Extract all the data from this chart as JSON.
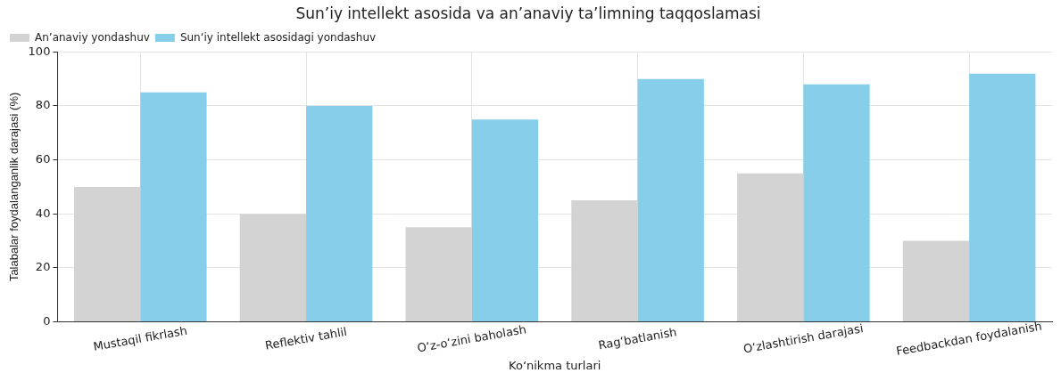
{
  "chart_data": {
    "type": "bar",
    "title": "Sun’iy intellekt asosida va an’anaviy ta’limning taqqoslamasi",
    "xlabel": "Ko‘nikma turlari",
    "ylabel": "Talabalar foydalanganlik darajasi (%)",
    "categories": [
      "Mustaqil fikrlash",
      "Reflektiv tahlil",
      "O‘z-o‘zini baholash",
      "Rag‘batlanish",
      "O‘zlashtirish darajasi",
      "Feedbackdan foydalanish"
    ],
    "series": [
      {
        "name": "An’anaviy yondashuv",
        "color": "#d3d3d3",
        "values": [
          50,
          40,
          35,
          45,
          55,
          30
        ]
      },
      {
        "name": "Sun‘iy intellekt asosidagi yondashuv",
        "color": "#87ceeb",
        "values": [
          85,
          80,
          75,
          90,
          88,
          92
        ]
      }
    ],
    "ylim": [
      0,
      100
    ],
    "yticks": [
      0,
      20,
      40,
      60,
      80,
      100
    ],
    "grid": true,
    "legend": "top left"
  }
}
